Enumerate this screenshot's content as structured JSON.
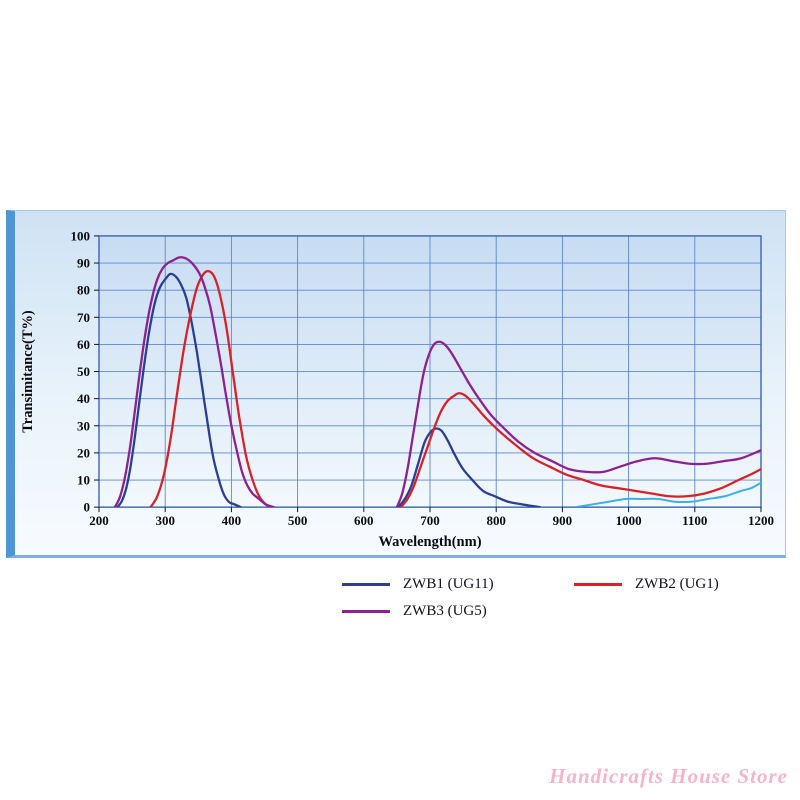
{
  "chart_data": {
    "type": "line",
    "title": "",
    "xlabel": "Wavelength(nm)",
    "ylabel": "Transimitance(T%)",
    "xlim": [
      200,
      1200
    ],
    "ylim": [
      0,
      100
    ],
    "x_ticks": [
      200,
      300,
      400,
      500,
      600,
      700,
      800,
      900,
      1000,
      1100,
      1200
    ],
    "y_ticks": [
      0,
      10,
      20,
      30,
      40,
      50,
      60,
      70,
      80,
      90,
      100
    ],
    "grid": true,
    "grid_color": "#5d87d0",
    "plot_border_color": "#3c64b8",
    "legend_position": "below",
    "series": [
      {
        "name": "ZWB1 (UG11)",
        "color": "#2a3f92",
        "segments": [
          [
            [
              228,
              0
            ],
            [
              236,
              3
            ],
            [
              244,
              10
            ],
            [
              252,
              22
            ],
            [
              260,
              37
            ],
            [
              268,
              52
            ],
            [
              276,
              65
            ],
            [
              284,
              75
            ],
            [
              292,
              81
            ],
            [
              300,
              84
            ],
            [
              308,
              86
            ],
            [
              316,
              85
            ],
            [
              324,
              82
            ],
            [
              332,
              77
            ],
            [
              340,
              68
            ],
            [
              348,
              57
            ],
            [
              356,
              44
            ],
            [
              364,
              31
            ],
            [
              372,
              19
            ],
            [
              380,
              11
            ],
            [
              388,
              5
            ],
            [
              396,
              2
            ],
            [
              405,
              1
            ],
            [
              414,
              0
            ]
          ],
          [
            [
              652,
              0
            ],
            [
              662,
              3
            ],
            [
              672,
              8
            ],
            [
              682,
              16
            ],
            [
              692,
              24
            ],
            [
              702,
              28
            ],
            [
              710,
              29
            ],
            [
              718,
              28
            ],
            [
              728,
              24
            ],
            [
              738,
              19
            ],
            [
              750,
              14
            ],
            [
              764,
              10
            ],
            [
              780,
              6
            ],
            [
              798,
              4
            ],
            [
              818,
              2
            ],
            [
              840,
              1
            ],
            [
              866,
              0
            ]
          ]
        ]
      },
      {
        "name": "ZWB2 (UG1)",
        "color": "#d8222a",
        "segments": [
          [
            [
              278,
              0
            ],
            [
              288,
              4
            ],
            [
              298,
              12
            ],
            [
              308,
              25
            ],
            [
              318,
              42
            ],
            [
              328,
              58
            ],
            [
              338,
              71
            ],
            [
              348,
              81
            ],
            [
              358,
              86
            ],
            [
              366,
              87
            ],
            [
              374,
              85
            ],
            [
              382,
              79
            ],
            [
              392,
              67
            ],
            [
              402,
              50
            ],
            [
              412,
              33
            ],
            [
              422,
              19
            ],
            [
              432,
              10
            ],
            [
              442,
              4
            ],
            [
              452,
              1
            ],
            [
              460,
              0
            ]
          ],
          [
            [
              656,
              0
            ],
            [
              666,
              3
            ],
            [
              676,
              8
            ],
            [
              686,
              15
            ],
            [
              696,
              22
            ],
            [
              706,
              29
            ],
            [
              716,
              35
            ],
            [
              726,
              39
            ],
            [
              736,
              41
            ],
            [
              744,
              42
            ],
            [
              754,
              41
            ],
            [
              766,
              38
            ],
            [
              780,
              34
            ],
            [
              796,
              30
            ],
            [
              814,
              26
            ],
            [
              834,
              22
            ],
            [
              856,
              18
            ],
            [
              880,
              15
            ],
            [
              906,
              12
            ],
            [
              932,
              10
            ],
            [
              958,
              8
            ],
            [
              984,
              7
            ],
            [
              1010,
              6
            ],
            [
              1036,
              5
            ],
            [
              1062,
              4
            ],
            [
              1088,
              4
            ],
            [
              1114,
              5
            ],
            [
              1140,
              7
            ],
            [
              1166,
              10
            ],
            [
              1184,
              12
            ],
            [
              1200,
              14
            ]
          ]
        ]
      },
      {
        "name": "ZWB3 (UG5)",
        "color": "#8e2190",
        "segments": [
          [
            [
              224,
              0
            ],
            [
              232,
              4
            ],
            [
              240,
              12
            ],
            [
              248,
              24
            ],
            [
              256,
              39
            ],
            [
              264,
              54
            ],
            [
              272,
              67
            ],
            [
              280,
              77
            ],
            [
              288,
              84
            ],
            [
              296,
              88
            ],
            [
              304,
              90
            ],
            [
              312,
              91
            ],
            [
              320,
              92
            ],
            [
              328,
              92
            ],
            [
              336,
              91
            ],
            [
              344,
              89
            ],
            [
              352,
              86
            ],
            [
              360,
              81
            ],
            [
              368,
              74
            ],
            [
              376,
              64
            ],
            [
              384,
              53
            ],
            [
              392,
              41
            ],
            [
              400,
              30
            ],
            [
              408,
              21
            ],
            [
              416,
              13
            ],
            [
              424,
              8
            ],
            [
              432,
              5
            ],
            [
              442,
              3
            ],
            [
              452,
              1
            ],
            [
              464,
              0
            ]
          ],
          [
            [
              650,
              0
            ],
            [
              658,
              5
            ],
            [
              666,
              14
            ],
            [
              674,
              26
            ],
            [
              682,
              38
            ],
            [
              690,
              49
            ],
            [
              698,
              56
            ],
            [
              706,
              60
            ],
            [
              714,
              61
            ],
            [
              722,
              60
            ],
            [
              732,
              57
            ],
            [
              744,
              52
            ],
            [
              758,
              46
            ],
            [
              774,
              40
            ],
            [
              792,
              34
            ],
            [
              812,
              29
            ],
            [
              834,
              24
            ],
            [
              858,
              20
            ],
            [
              884,
              17
            ],
            [
              910,
              14
            ],
            [
              936,
              13
            ],
            [
              962,
              13
            ],
            [
              988,
              15
            ],
            [
              1014,
              17
            ],
            [
              1040,
              18
            ],
            [
              1066,
              17
            ],
            [
              1092,
              16
            ],
            [
              1118,
              16
            ],
            [
              1144,
              17
            ],
            [
              1170,
              18
            ],
            [
              1200,
              21
            ]
          ]
        ]
      },
      {
        "name": "cyan-unlabeled",
        "color": "#3fb0e4",
        "segments": [
          [
            [
              920,
              0
            ],
            [
              945,
              1
            ],
            [
              970,
              2
            ],
            [
              995,
              3
            ],
            [
              1020,
              3
            ],
            [
              1045,
              3
            ],
            [
              1070,
              2
            ],
            [
              1095,
              2
            ],
            [
              1120,
              3
            ],
            [
              1145,
              4
            ],
            [
              1170,
              6
            ],
            [
              1185,
              7
            ],
            [
              1200,
              9
            ]
          ]
        ]
      }
    ]
  },
  "legend": {
    "items": [
      {
        "label": "ZWB1 (UG11)",
        "color": "#2a3f92"
      },
      {
        "label": "ZWB2 (UG1)",
        "color": "#d8222a"
      },
      {
        "label": "ZWB3 (UG5)",
        "color": "#8e2190"
      }
    ]
  },
  "watermark": {
    "text": "Handicrafts House Store",
    "color": "#f2a9c4"
  }
}
